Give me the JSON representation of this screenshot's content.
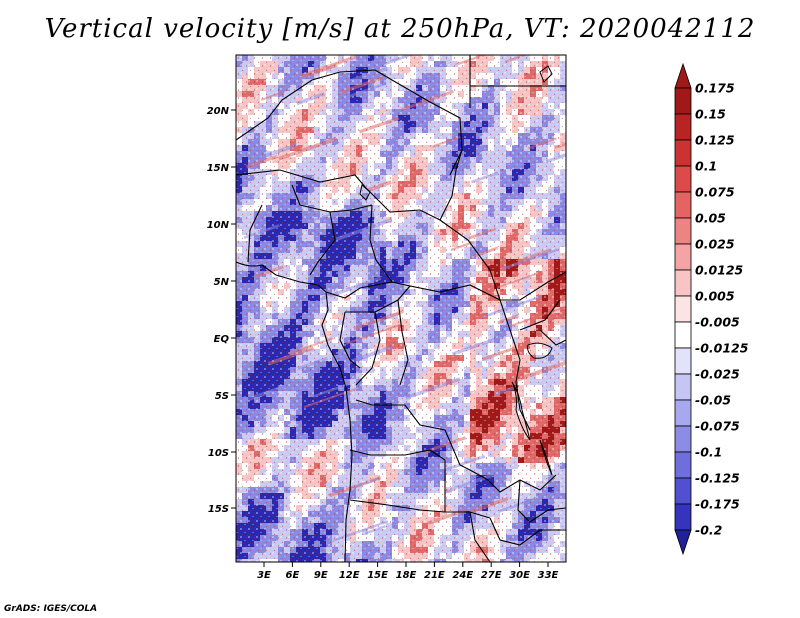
{
  "title": "Vertical velocity [m/s] at 250hPa, VT: 2020042112",
  "credit": "GrADS: IGES/COLA",
  "map": {
    "lat_ticks": [
      "20N",
      "15N",
      "10N",
      "5N",
      "EQ",
      "5S",
      "10S",
      "15S"
    ],
    "lon_ticks": [
      "3E",
      "6E",
      "9E",
      "12E",
      "15E",
      "18E",
      "21E",
      "24E",
      "27E",
      "30E",
      "33E"
    ],
    "palette": {
      "strong_ascent": "#a01818",
      "moderate_ascent": "#e06a6a",
      "weak_ascent": "#f5c4c4",
      "neutral": "#ffffff",
      "weak_descent": "#c9c9f3",
      "moderate_descent": "#8a8ae6",
      "strong_descent": "#2828b4",
      "borders": "#000000"
    }
  },
  "colorbar": {
    "levels": [
      {
        "label": "0.175",
        "color": "#a01818"
      },
      {
        "label": "0.15",
        "color": "#b82424"
      },
      {
        "label": "0.125",
        "color": "#cc3232"
      },
      {
        "label": "0.1",
        "color": "#dc4a4a"
      },
      {
        "label": "0.075",
        "color": "#e46464"
      },
      {
        "label": "0.05",
        "color": "#ec8484"
      },
      {
        "label": "0.025",
        "color": "#f4a4a4"
      },
      {
        "label": "0.0125",
        "color": "#f8c4c4"
      },
      {
        "label": "0.005",
        "color": "#fce4e4"
      },
      {
        "label": "-0.005",
        "color": "#ffffff"
      },
      {
        "label": "-0.0125",
        "color": "#e2e2fa"
      },
      {
        "label": "-0.025",
        "color": "#c6c6f4"
      },
      {
        "label": "-0.05",
        "color": "#a8a8ee"
      },
      {
        "label": "-0.075",
        "color": "#8c8ce6"
      },
      {
        "label": "-0.1",
        "color": "#6e6edc"
      },
      {
        "label": "-0.125",
        "color": "#5050d0"
      },
      {
        "label": "-0.175",
        "color": "#3434bc"
      },
      {
        "label": "-0.2",
        "color": "#2020a0"
      }
    ],
    "top_color": "#a01818",
    "bottom_color": "#20209a"
  }
}
